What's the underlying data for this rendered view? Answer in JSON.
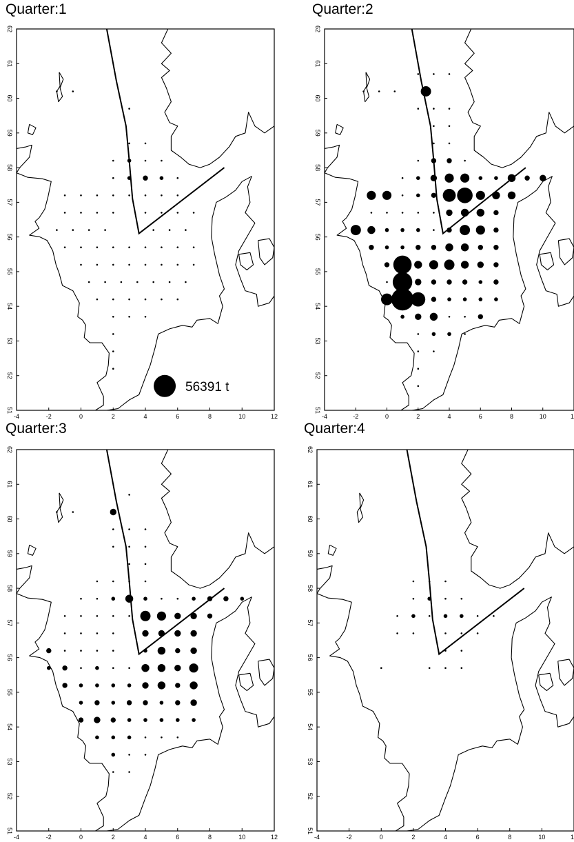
{
  "colors": {
    "ink": "#000000",
    "background": "#ffffff"
  },
  "panels": [
    {
      "title": "Quarter:1",
      "points": [
        [
          -1.5,
          60.2,
          1
        ],
        [
          -0.5,
          60.2,
          1
        ],
        [
          3,
          59.7,
          1
        ],
        [
          3,
          58.7,
          1
        ],
        [
          4,
          58.7,
          1
        ],
        [
          2,
          58.2,
          1
        ],
        [
          3,
          58.2,
          2
        ],
        [
          4,
          58.2,
          1
        ],
        [
          5,
          58.2,
          1
        ],
        [
          2,
          57.7,
          1
        ],
        [
          3,
          57.7,
          2
        ],
        [
          4,
          57.7,
          3
        ],
        [
          5,
          57.7,
          2
        ],
        [
          6,
          57.7,
          1
        ],
        [
          -1,
          57.2,
          1
        ],
        [
          0,
          57.2,
          1
        ],
        [
          1,
          57.2,
          1
        ],
        [
          2,
          57.2,
          1
        ],
        [
          3,
          57.2,
          1
        ],
        [
          4,
          57.2,
          1
        ],
        [
          5,
          57.2,
          1
        ],
        [
          6,
          57.2,
          1
        ],
        [
          -1,
          56.7,
          1
        ],
        [
          0,
          56.7,
          1
        ],
        [
          1,
          56.7,
          1
        ],
        [
          2,
          56.7,
          1
        ],
        [
          4,
          56.7,
          1
        ],
        [
          5,
          56.7,
          1
        ],
        [
          6,
          56.7,
          1
        ],
        [
          7,
          56.7,
          1
        ],
        [
          -1.5,
          56.2,
          1
        ],
        [
          -0.5,
          56.2,
          1
        ],
        [
          0.5,
          56.2,
          1
        ],
        [
          1.5,
          56.2,
          1
        ],
        [
          4.5,
          56.2,
          1
        ],
        [
          5.5,
          56.2,
          1
        ],
        [
          6.5,
          56.2,
          1
        ],
        [
          -1,
          55.7,
          1
        ],
        [
          0,
          55.7,
          1
        ],
        [
          1,
          55.7,
          1
        ],
        [
          2,
          55.7,
          1
        ],
        [
          3,
          55.7,
          1
        ],
        [
          4,
          55.7,
          1
        ],
        [
          5,
          55.7,
          1
        ],
        [
          6,
          55.7,
          1
        ],
        [
          7,
          55.7,
          1
        ],
        [
          0,
          55.2,
          1
        ],
        [
          1,
          55.2,
          1
        ],
        [
          2,
          55.2,
          1
        ],
        [
          3,
          55.2,
          1
        ],
        [
          4,
          55.2,
          1
        ],
        [
          5,
          55.2,
          1
        ],
        [
          6,
          55.2,
          1
        ],
        [
          7,
          55.2,
          1
        ],
        [
          0.5,
          54.7,
          1
        ],
        [
          1.5,
          54.7,
          1
        ],
        [
          2.5,
          54.7,
          1
        ],
        [
          3.5,
          54.7,
          1
        ],
        [
          4.5,
          54.7,
          1
        ],
        [
          5.5,
          54.7,
          1
        ],
        [
          6.5,
          54.7,
          1
        ],
        [
          1,
          54.2,
          1
        ],
        [
          2,
          54.2,
          1
        ],
        [
          3,
          54.2,
          1
        ],
        [
          4,
          54.2,
          1
        ],
        [
          5,
          54.2,
          1
        ],
        [
          6,
          54.2,
          1
        ],
        [
          2,
          53.7,
          1
        ],
        [
          3,
          53.7,
          1
        ],
        [
          4,
          53.7,
          1
        ],
        [
          2,
          53.2,
          1
        ],
        [
          2,
          52.7,
          1
        ],
        [
          2,
          52.2,
          1
        ]
      ],
      "legend": {
        "value": "56391 t",
        "lon": 5.2,
        "lat": 51.7
      }
    },
    {
      "title": "Quarter:2",
      "points": [
        [
          -1.5,
          60.2,
          1
        ],
        [
          -0.5,
          60.2,
          1
        ],
        [
          0.5,
          60.2,
          1
        ],
        [
          2.5,
          60.2,
          7
        ],
        [
          2,
          60.7,
          1
        ],
        [
          3,
          60.7,
          1
        ],
        [
          4,
          60.7,
          1
        ],
        [
          2,
          59.7,
          1
        ],
        [
          3,
          59.7,
          1
        ],
        [
          4,
          59.7,
          1
        ],
        [
          3,
          59.2,
          1
        ],
        [
          4,
          59.2,
          1
        ],
        [
          3,
          58.7,
          1
        ],
        [
          4,
          58.7,
          1
        ],
        [
          2,
          58.2,
          1
        ],
        [
          3,
          58.2,
          3
        ],
        [
          4,
          58.2,
          3
        ],
        [
          5,
          58.2,
          1
        ],
        [
          1,
          57.7,
          1
        ],
        [
          2,
          57.7,
          2
        ],
        [
          3,
          57.7,
          4
        ],
        [
          4,
          57.7,
          6
        ],
        [
          5,
          57.7,
          6
        ],
        [
          6,
          57.7,
          2
        ],
        [
          7,
          57.7,
          2
        ],
        [
          8,
          57.7,
          5
        ],
        [
          9,
          57.7,
          3
        ],
        [
          10,
          57.7,
          4
        ],
        [
          -1,
          57.2,
          6
        ],
        [
          0,
          57.2,
          6
        ],
        [
          1,
          57.2,
          1
        ],
        [
          2,
          57.2,
          2
        ],
        [
          3,
          57.2,
          3
        ],
        [
          4,
          57.2,
          9
        ],
        [
          5,
          57.2,
          11
        ],
        [
          6,
          57.2,
          6
        ],
        [
          7,
          57.2,
          5
        ],
        [
          8,
          57.2,
          5
        ],
        [
          -1,
          56.7,
          1
        ],
        [
          0,
          56.7,
          1
        ],
        [
          1,
          56.7,
          1
        ],
        [
          2,
          56.7,
          1
        ],
        [
          3,
          56.7,
          1
        ],
        [
          4,
          56.7,
          4
        ],
        [
          5,
          56.7,
          5
        ],
        [
          6,
          56.7,
          5
        ],
        [
          7,
          56.7,
          3
        ],
        [
          -2,
          56.2,
          7
        ],
        [
          -1,
          56.2,
          5
        ],
        [
          0,
          56.2,
          2
        ],
        [
          1,
          56.2,
          2
        ],
        [
          2,
          56.2,
          2
        ],
        [
          3,
          56.2,
          1
        ],
        [
          4,
          56.2,
          3
        ],
        [
          5,
          56.2,
          7
        ],
        [
          6,
          56.2,
          6
        ],
        [
          7,
          56.2,
          3
        ],
        [
          -1,
          55.7,
          3
        ],
        [
          0,
          55.7,
          2
        ],
        [
          1,
          55.7,
          2
        ],
        [
          2,
          55.7,
          3
        ],
        [
          3,
          55.7,
          3
        ],
        [
          4,
          55.7,
          5
        ],
        [
          5,
          55.7,
          5
        ],
        [
          6,
          55.7,
          3
        ],
        [
          7,
          55.7,
          3
        ],
        [
          0,
          55.2,
          3
        ],
        [
          1,
          55.2,
          13
        ],
        [
          2,
          55.2,
          5
        ],
        [
          3,
          55.2,
          6
        ],
        [
          4,
          55.2,
          7
        ],
        [
          5,
          55.2,
          5
        ],
        [
          6,
          55.2,
          4
        ],
        [
          7,
          55.2,
          3
        ],
        [
          0,
          54.7,
          1
        ],
        [
          1,
          54.7,
          14
        ],
        [
          2,
          54.7,
          4
        ],
        [
          3,
          54.7,
          3
        ],
        [
          4,
          54.7,
          3
        ],
        [
          5,
          54.7,
          3
        ],
        [
          6,
          54.7,
          2
        ],
        [
          7,
          54.7,
          3
        ],
        [
          0,
          54.2,
          8
        ],
        [
          1,
          54.2,
          16
        ],
        [
          2,
          54.2,
          10
        ],
        [
          3,
          54.2,
          3
        ],
        [
          4,
          54.2,
          2
        ],
        [
          5,
          54.2,
          2
        ],
        [
          6,
          54.2,
          2
        ],
        [
          7,
          54.2,
          2
        ],
        [
          1,
          53.7,
          2
        ],
        [
          2,
          53.7,
          4
        ],
        [
          3,
          53.7,
          5
        ],
        [
          4,
          53.7,
          1
        ],
        [
          5,
          53.7,
          1
        ],
        [
          6,
          53.7,
          3
        ],
        [
          2,
          53.2,
          1
        ],
        [
          3,
          53.2,
          2
        ],
        [
          4,
          53.2,
          2
        ],
        [
          5,
          53.2,
          1
        ],
        [
          2,
          52.7,
          1
        ],
        [
          3,
          52.7,
          1
        ],
        [
          2,
          52.2,
          1
        ],
        [
          2,
          51.7,
          1
        ]
      ]
    },
    {
      "title": "Quarter:3",
      "points": [
        [
          -1.5,
          60.2,
          1
        ],
        [
          -0.5,
          60.2,
          1
        ],
        [
          2,
          60.2,
          4
        ],
        [
          3,
          60.7,
          1
        ],
        [
          2,
          59.7,
          1
        ],
        [
          3,
          59.7,
          1
        ],
        [
          4,
          59.7,
          1
        ],
        [
          2,
          59.2,
          1
        ],
        [
          3,
          59.2,
          1
        ],
        [
          4,
          59.2,
          1
        ],
        [
          3,
          58.7,
          1
        ],
        [
          4,
          58.7,
          1
        ],
        [
          1,
          58.2,
          1
        ],
        [
          2,
          58.2,
          1
        ],
        [
          3,
          58.2,
          1
        ],
        [
          4,
          58.2,
          1
        ],
        [
          0,
          57.7,
          1
        ],
        [
          1,
          57.7,
          1
        ],
        [
          2,
          57.7,
          2
        ],
        [
          3,
          57.7,
          5
        ],
        [
          4,
          57.7,
          2
        ],
        [
          5,
          57.7,
          1
        ],
        [
          6,
          57.7,
          1
        ],
        [
          7,
          57.7,
          2
        ],
        [
          8,
          57.7,
          3
        ],
        [
          9,
          57.7,
          3
        ],
        [
          10,
          57.7,
          2
        ],
        [
          -1,
          57.2,
          1
        ],
        [
          0,
          57.2,
          1
        ],
        [
          1,
          57.2,
          1
        ],
        [
          2,
          57.2,
          1
        ],
        [
          3,
          57.2,
          1
        ],
        [
          4,
          57.2,
          7
        ],
        [
          5,
          57.2,
          6
        ],
        [
          6,
          57.2,
          4
        ],
        [
          7,
          57.2,
          4
        ],
        [
          8,
          57.2,
          3
        ],
        [
          -1,
          56.7,
          1
        ],
        [
          0,
          56.7,
          1
        ],
        [
          1,
          56.7,
          1
        ],
        [
          2,
          56.7,
          1
        ],
        [
          4,
          56.7,
          4
        ],
        [
          5,
          56.7,
          4
        ],
        [
          6,
          56.7,
          4
        ],
        [
          7,
          56.7,
          4
        ],
        [
          -2,
          56.2,
          3
        ],
        [
          -1,
          56.2,
          1
        ],
        [
          0,
          56.2,
          1
        ],
        [
          1,
          56.2,
          1
        ],
        [
          2,
          56.2,
          1
        ],
        [
          4,
          56.2,
          2
        ],
        [
          5,
          56.2,
          5
        ],
        [
          6,
          56.2,
          3
        ],
        [
          7,
          56.2,
          4
        ],
        [
          -2,
          55.7,
          2
        ],
        [
          -1,
          55.7,
          3
        ],
        [
          0,
          55.7,
          1
        ],
        [
          1,
          55.7,
          2
        ],
        [
          2,
          55.7,
          1
        ],
        [
          3,
          55.7,
          1
        ],
        [
          4,
          55.7,
          5
        ],
        [
          5,
          55.7,
          5
        ],
        [
          6,
          55.7,
          4
        ],
        [
          7,
          55.7,
          6
        ],
        [
          -1,
          55.2,
          3
        ],
        [
          0,
          55.2,
          2
        ],
        [
          1,
          55.2,
          2
        ],
        [
          2,
          55.2,
          2
        ],
        [
          3,
          55.2,
          2
        ],
        [
          4,
          55.2,
          4
        ],
        [
          5,
          55.2,
          5
        ],
        [
          6,
          55.2,
          3
        ],
        [
          7,
          55.2,
          5
        ],
        [
          0,
          54.7,
          2
        ],
        [
          1,
          54.7,
          3
        ],
        [
          2,
          54.7,
          2
        ],
        [
          3,
          54.7,
          3
        ],
        [
          4,
          54.7,
          3
        ],
        [
          5,
          54.7,
          2
        ],
        [
          6,
          54.7,
          3
        ],
        [
          7,
          54.7,
          4
        ],
        [
          0,
          54.2,
          3
        ],
        [
          1,
          54.2,
          4
        ],
        [
          2,
          54.2,
          3
        ],
        [
          3,
          54.2,
          2
        ],
        [
          4,
          54.2,
          2
        ],
        [
          5,
          54.2,
          2
        ],
        [
          6,
          54.2,
          2
        ],
        [
          7,
          54.2,
          2
        ],
        [
          1,
          53.7,
          2
        ],
        [
          2,
          53.7,
          2
        ],
        [
          3,
          53.7,
          2
        ],
        [
          4,
          53.7,
          1
        ],
        [
          5,
          53.7,
          1
        ],
        [
          6,
          53.7,
          1
        ],
        [
          2,
          53.2,
          2
        ],
        [
          3,
          53.2,
          1
        ],
        [
          4,
          53.2,
          1
        ],
        [
          2,
          52.7,
          1
        ],
        [
          3,
          52.7,
          1
        ]
      ]
    },
    {
      "title": "Quarter:4",
      "points": [
        [
          2,
          58.2,
          1
        ],
        [
          3,
          58.2,
          1
        ],
        [
          4,
          58.2,
          1
        ],
        [
          2,
          57.7,
          1
        ],
        [
          3,
          57.7,
          2
        ],
        [
          4,
          57.7,
          1
        ],
        [
          5,
          57.7,
          1
        ],
        [
          1,
          57.2,
          1
        ],
        [
          2,
          57.2,
          2
        ],
        [
          3,
          57.2,
          1
        ],
        [
          4,
          57.2,
          2
        ],
        [
          5,
          57.2,
          2
        ],
        [
          6,
          57.2,
          1
        ],
        [
          7,
          57.2,
          1
        ],
        [
          1,
          56.7,
          1
        ],
        [
          2,
          56.7,
          1
        ],
        [
          4,
          56.7,
          1
        ],
        [
          5,
          56.7,
          1
        ],
        [
          6,
          56.7,
          1
        ],
        [
          4,
          56.2,
          1
        ],
        [
          5,
          56.2,
          1
        ],
        [
          0,
          55.7,
          1
        ],
        [
          3,
          55.7,
          1
        ],
        [
          4,
          55.7,
          1
        ],
        [
          5,
          55.7,
          1
        ]
      ]
    }
  ]
}
